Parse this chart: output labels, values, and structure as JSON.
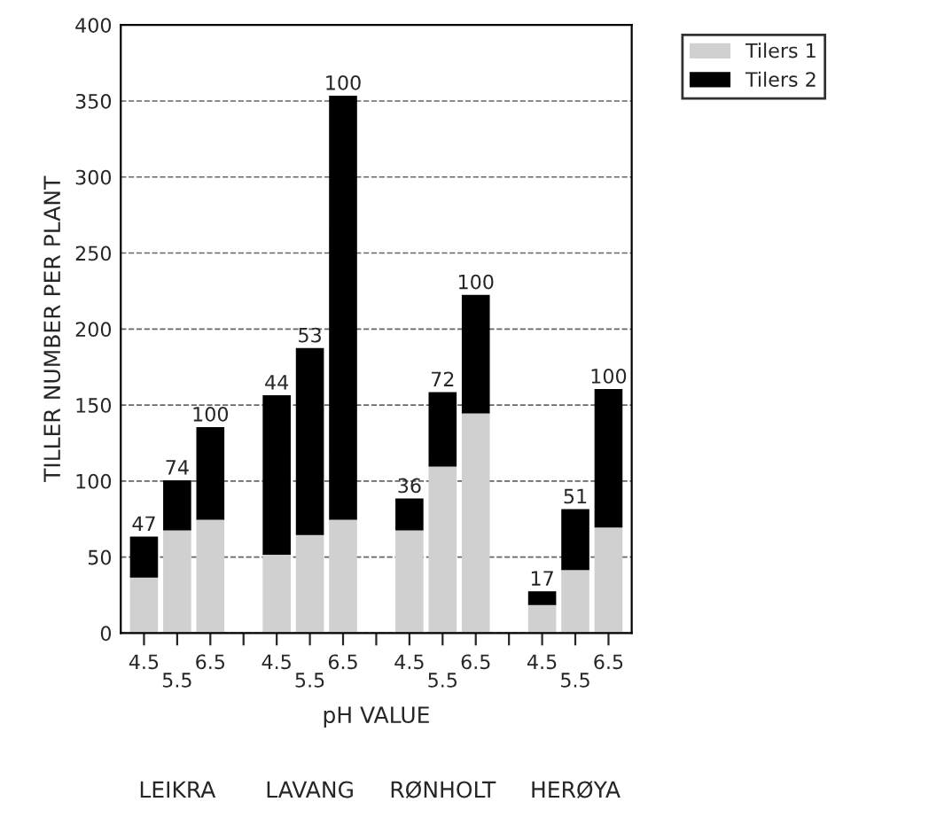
{
  "chart_data": {
    "type": "bar",
    "stacked": true,
    "xlabel": "pH VALUE",
    "ylabel": "TILLER NUMBER PER PLANT",
    "categories": [
      "4.5",
      "5.5",
      "6.5",
      null,
      "4.5",
      "5.5",
      "6.5",
      null,
      "4.5",
      "5.5",
      "6.5",
      null,
      "4.5",
      "5.5",
      "6.5"
    ],
    "series": [
      {
        "name": "Tilers 1",
        "color": "#d0d0d0",
        "values": [
          37,
          68,
          75,
          null,
          52,
          65,
          75,
          null,
          68,
          110,
          145,
          null,
          19,
          42,
          70
        ]
      },
      {
        "name": "Tilers 2",
        "color": "#000000",
        "values": [
          26,
          32,
          60,
          null,
          104,
          122,
          278,
          null,
          20,
          48,
          77,
          null,
          8,
          39,
          90
        ]
      }
    ],
    "annotations": [
      "LEIKRA",
      "LAVANG",
      "RØNHOLT",
      "HERØYA",
      {
        "text": "47",
        "y": 63
      },
      {
        "text": "74",
        "y": 100
      },
      {
        "text": "100",
        "y": 135
      },
      {
        "text": "44",
        "y": 156
      },
      {
        "text": "53",
        "y": 187
      },
      {
        "text": "100",
        "y": 353
      },
      {
        "text": "36",
        "y": 88
      },
      {
        "text": "72",
        "y": 158
      },
      {
        "text": "100",
        "y": 222
      },
      {
        "text": "17",
        "y": 27
      },
      {
        "text": "51",
        "y": 81
      },
      {
        "text": "100",
        "y": 160
      }
    ],
    "ylim": [
      0,
      400
    ],
    "yticks": [
      0,
      50,
      100,
      150,
      200,
      250,
      300,
      350,
      400
    ],
    "grid": "y",
    "legend": "top right"
  }
}
